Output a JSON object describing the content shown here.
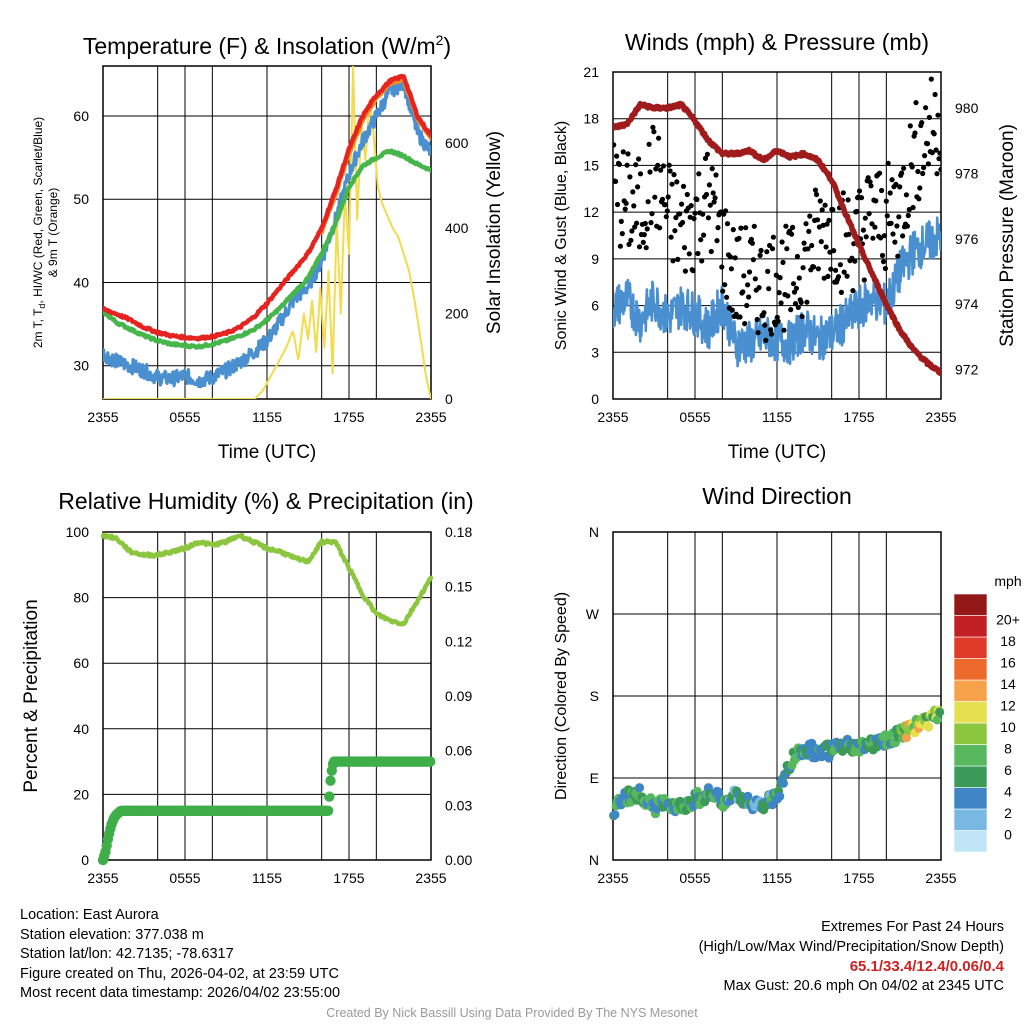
{
  "chart_data": [
    {
      "type": "line",
      "title": "Temperature (F) & Insolation (W/m",
      "title_sup": "2",
      "title_close": ")",
      "xlabel": "Time (UTC)",
      "ylabel_left_line1": "2m T, T",
      "ylabel_left_sub": "d",
      "ylabel_left_line1b": ", HI/WC (Red, Green, Scarlet/Blue)",
      "ylabel_left_line2": "& 9m T (Orange)",
      "ylabel_right": "Solar Insolation (Yellow)",
      "x_ticks": [
        "2355",
        "0555",
        "1155",
        "1755",
        "2355"
      ],
      "y_ticks_left": [
        30,
        40,
        50,
        60
      ],
      "y_ticks_right": [
        0,
        200,
        400,
        600
      ],
      "ylim_left": [
        26,
        66
      ],
      "ylim_right": [
        0,
        780
      ],
      "xlim_hours": [
        0,
        24
      ],
      "series": [
        {
          "name": "Solar Insolation",
          "color": "#f2dc4c",
          "x": [
            0,
            11.1,
            11.7,
            12.3,
            12.9,
            13.4,
            13.9,
            14.3,
            14.7,
            15.0,
            15.3,
            15.6,
            15.9,
            16.2,
            16.5,
            16.8,
            17.1,
            17.4,
            17.7,
            18.0,
            18.3,
            18.6,
            18.9,
            19.2,
            19.5,
            19.8,
            20.1,
            20.4,
            20.8,
            21.2,
            21.6,
            22.0,
            22.4,
            22.8,
            23.2,
            23.6,
            24.0
          ],
          "values": [
            0,
            0,
            20,
            55,
            90,
            120,
            160,
            90,
            200,
            140,
            230,
            110,
            260,
            120,
            300,
            60,
            420,
            200,
            480,
            340,
            780,
            420,
            640,
            560,
            700,
            620,
            500,
            460,
            430,
            400,
            380,
            340,
            300,
            230,
            150,
            60,
            0
          ]
        },
        {
          "name": "2m Temperature",
          "color": "#e52421",
          "x": [
            0,
            1,
            2,
            3,
            4,
            5,
            6,
            7,
            8,
            9,
            10,
            11,
            12,
            13,
            14,
            15,
            16,
            17,
            18,
            19,
            20,
            21,
            22,
            23,
            24
          ],
          "values": [
            36.8,
            36.2,
            35.5,
            34.6,
            34.0,
            33.6,
            33.4,
            33.3,
            33.5,
            33.9,
            34.6,
            35.8,
            37.5,
            39.5,
            41.5,
            43.5,
            46.5,
            51,
            56,
            60,
            62.5,
            64.2,
            64.8,
            60,
            57.6
          ]
        },
        {
          "name": "9m Temperature",
          "color": "#f08a24",
          "x": [
            16,
            17,
            18,
            19,
            20,
            21,
            22,
            23,
            24
          ],
          "values": [
            46.2,
            50.6,
            55.6,
            59.6,
            62.2,
            63.9,
            64.5,
            59.8,
            57.4
          ]
        },
        {
          "name": "Dew Point",
          "color": "#46b64a",
          "x": [
            0,
            1,
            2,
            3,
            4,
            5,
            6,
            7,
            8,
            9,
            10,
            11,
            12,
            13,
            14,
            15,
            16,
            17,
            18,
            19,
            20,
            21,
            22,
            23,
            24
          ],
          "values": [
            36.5,
            35.2,
            34.4,
            33.6,
            33.0,
            32.6,
            32.4,
            32.3,
            32.6,
            33.0,
            33.6,
            34.3,
            35.5,
            37.0,
            38.8,
            40.5,
            43.5,
            47,
            51.5,
            54,
            55,
            55.8,
            55.2,
            54.2,
            53.5
          ]
        },
        {
          "name": "Wind Chill",
          "color": "#4a90d0",
          "x": [
            0,
            1,
            2,
            3,
            4,
            5,
            6,
            7,
            8,
            9,
            10,
            11,
            12,
            13,
            14,
            15,
            16,
            17,
            18,
            19,
            20,
            21,
            22,
            23,
            24
          ],
          "values": [
            31.5,
            30.5,
            30,
            29.4,
            28.6,
            28.4,
            28.8,
            28.2,
            28.6,
            29.4,
            30.4,
            31.6,
            33.0,
            35.4,
            38.0,
            39.5,
            42.6,
            47.5,
            53,
            57,
            60,
            63,
            64,
            58,
            55.6
          ]
        }
      ]
    },
    {
      "type": "line",
      "title": "Winds (mph) & Pressure (mb)",
      "xlabel": "Time (UTC)",
      "ylabel_left": "Sonic Wind & Gust (Blue, Black)",
      "ylabel_right": "Station Pressure (Maroon)",
      "x_ticks": [
        "2355",
        "0555",
        "1155",
        "1755",
        "2355"
      ],
      "y_ticks_left": [
        0,
        3,
        6,
        9,
        12,
        15,
        18,
        21
      ],
      "y_ticks_right": [
        972,
        974,
        976,
        978,
        980
      ],
      "ylim_left": [
        0,
        21
      ],
      "ylim_right": [
        971.1,
        981.1
      ],
      "xlim_hours": [
        0,
        24
      ],
      "series": [
        {
          "name": "Sonic Wind",
          "color": "#4a90d0",
          "x": [
            0,
            1,
            2,
            3,
            4,
            5,
            6,
            7,
            8,
            9,
            10,
            11,
            12,
            13,
            14,
            15,
            16,
            17,
            18,
            19,
            20,
            21,
            22,
            23,
            24
          ],
          "values": [
            5.8,
            6.5,
            5.0,
            6.4,
            5.2,
            6.0,
            5.5,
            4.5,
            6.2,
            3.5,
            3.6,
            4.0,
            3.8,
            3.6,
            4.5,
            3.8,
            4.2,
            5.0,
            5.8,
            6.5,
            6.0,
            8.2,
            9.5,
            10.0,
            10.5
          ]
        },
        {
          "name": "Gust",
          "color": "#000000",
          "x": [
            0,
            1,
            2,
            3,
            4,
            5,
            6,
            7,
            8,
            9,
            10,
            11,
            12,
            13,
            14,
            15,
            16,
            17,
            18,
            19,
            20,
            21,
            22,
            23,
            24
          ],
          "values": [
            13.5,
            12.5,
            12.0,
            14.5,
            12.0,
            11.0,
            11.5,
            13.0,
            10.0,
            7.5,
            8.0,
            7.0,
            8.0,
            7.5,
            9.0,
            10.5,
            11.0,
            10.0,
            10.5,
            12.0,
            11.5,
            12.5,
            15.5,
            17.0,
            18.0
          ]
        },
        {
          "name": "Station Pressure",
          "color": "#a01b1b",
          "x": [
            0,
            1,
            2,
            3,
            4,
            5,
            6,
            7,
            8,
            9,
            10,
            11,
            12,
            13,
            14,
            15,
            16,
            17,
            18,
            19,
            20,
            21,
            22,
            23,
            24
          ],
          "values": [
            979.4,
            979.5,
            980.1,
            980.0,
            980.0,
            980.1,
            979.6,
            979.0,
            978.6,
            978.6,
            978.7,
            978.4,
            978.7,
            978.5,
            978.6,
            978.4,
            977.8,
            976.8,
            975.8,
            974.9,
            974.0,
            973.2,
            972.6,
            972.2,
            971.9
          ]
        }
      ]
    },
    {
      "type": "line",
      "title": "Relative Humidity (%) & Precipitation (in)",
      "xlabel": "",
      "ylabel_left": "Percent & Precipitation",
      "x_ticks": [
        "2355",
        "0555",
        "1155",
        "1755",
        "2355"
      ],
      "y_ticks_left": [
        0,
        20,
        40,
        60,
        80,
        100
      ],
      "y_ticks_right": [
        "0.00",
        "0.03",
        "0.06",
        "0.09",
        "0.12",
        "0.15",
        "0.18"
      ],
      "ylim_left": [
        0,
        100
      ],
      "ylim_right": [
        0,
        0.18
      ],
      "xlim_hours": [
        0,
        24
      ],
      "series": [
        {
          "name": "Relative Humidity",
          "color": "#8cc63f",
          "x": [
            0,
            1,
            2,
            3,
            4,
            5,
            6,
            7,
            8,
            9,
            10,
            11,
            12,
            13,
            14,
            15,
            16,
            17,
            18,
            19,
            20,
            21,
            22,
            23,
            24
          ],
          "values": [
            99,
            98,
            94,
            93,
            93,
            94,
            95,
            97,
            96,
            97,
            99,
            97,
            95,
            94,
            92,
            91,
            97,
            97,
            89,
            81,
            75,
            73,
            72,
            79,
            86
          ]
        },
        {
          "name": "Precipitation",
          "color": "#3fae49",
          "x": [
            0,
            0.2,
            0.4,
            0.6,
            0.8,
            1.0,
            1.3,
            2,
            4,
            6,
            8,
            10,
            12,
            14,
            16,
            16.5,
            16.6,
            16.7,
            16.8,
            16.9,
            17,
            18,
            20,
            22,
            24
          ],
          "values": [
            0,
            0.005,
            0.013,
            0.019,
            0.023,
            0.025,
            0.027,
            0.027,
            0.027,
            0.027,
            0.027,
            0.027,
            0.027,
            0.027,
            0.027,
            0.027,
            0.04,
            0.047,
            0.052,
            0.054,
            0.054,
            0.054,
            0.054,
            0.054,
            0.054
          ]
        }
      ]
    },
    {
      "type": "scatter",
      "title": "Wind Direction",
      "ylabel_left": "Direction (Colored By Speed)",
      "x_ticks": [
        "2355",
        "0555",
        "1155",
        "1755",
        "2355"
      ],
      "y_ticks_left": [
        "N",
        "E",
        "S",
        "W",
        "N"
      ],
      "ylim_left": [
        0,
        360
      ],
      "xlim_hours": [
        0,
        24
      ],
      "legend_title": "mph",
      "legend_labels": [
        "0",
        "2",
        "4",
        "6",
        "8",
        "10",
        "12",
        "14",
        "16",
        "18",
        "20+"
      ],
      "legend_colors": [
        "#bfe5f7",
        "#79b8e3",
        "#3e86c4",
        "#3b9a57",
        "#57b85e",
        "#8cc63f",
        "#e6e04e",
        "#f6a24a",
        "#ee6a2c",
        "#e03b28",
        "#c21f25",
        "#931818"
      ],
      "series": [
        {
          "name": "Wind direction",
          "x": [
            0,
            1,
            2,
            3,
            4,
            5,
            6,
            7,
            8,
            9,
            10,
            11,
            12,
            13,
            14,
            15,
            16,
            17,
            18,
            19,
            20,
            21,
            22,
            23,
            24
          ],
          "values": [
            55,
            70,
            72,
            58,
            62,
            60,
            66,
            74,
            64,
            70,
            64,
            60,
            70,
            108,
            124,
            118,
            120,
            126,
            122,
            128,
            132,
            138,
            146,
            150,
            162
          ]
        }
      ]
    }
  ],
  "info": {
    "location": "Location: East Aurora",
    "elevation": "Station elevation: 377.038 m",
    "latlon": "Station lat/lon: 42.7135; -78.6317",
    "created": "Figure created on Thu, 2026-04-02, at 23:59 UTC",
    "recent": "Most recent data timestamp: 2026/04/02 23:55:00"
  },
  "extremes": {
    "heading": "Extremes For Past 24 Hours",
    "legend": "(High/Low/Max Wind/Precipitation/Snow Depth)",
    "values": "65.1/33.4/12.4/0.06/0.4",
    "max_gust": "Max Gust: 20.6 mph On 04/02 at 2345 UTC"
  },
  "credit": "Created By Nick Bassill Using Data Provided By The NYS Mesonet"
}
